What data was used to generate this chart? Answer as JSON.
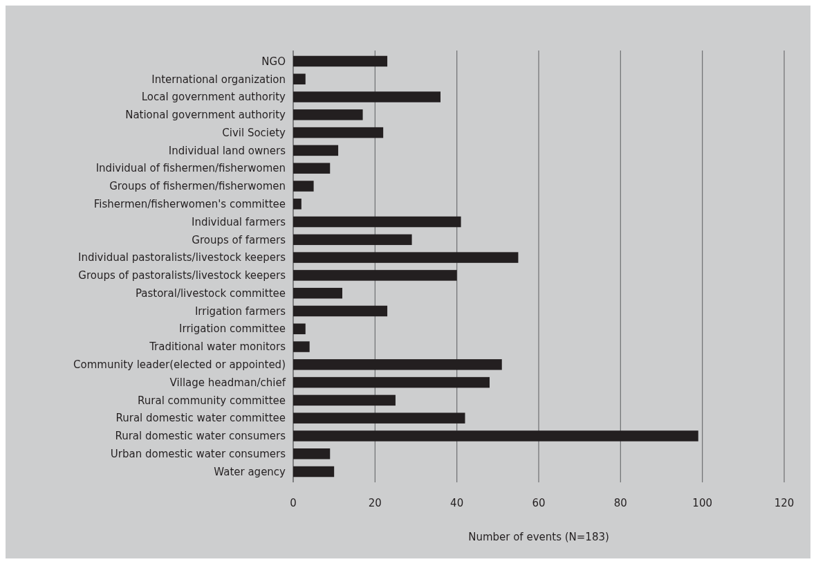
{
  "chart_data": {
    "type": "bar",
    "orientation": "horizontal",
    "xlabel": "Number of events (N=183)",
    "categories": [
      "NGO",
      "International organization",
      "Local government authority",
      "National government authority",
      "Civil Society",
      "Individual land owners",
      "Individual of fishermen/fisherwomen",
      "Groups of fishermen/fisherwomen",
      "Fishermen/fisherwomen's committee",
      "Individual farmers",
      "Groups of farmers",
      "Individual pastoralists/livestock keepers",
      "Groups of pastoralists/livestock keepers",
      "Pastoral/livestock committee",
      "Irrigation farmers",
      "Irrigation committee",
      "Traditional water monitors",
      "Community leader(elected or appointed)",
      "Village headman/chief",
      "Rural community committee",
      "Rural domestic water committee",
      "Rural domestic water consumers",
      "Urban domestic water consumers",
      "Water agency"
    ],
    "values": [
      23,
      3,
      36,
      17,
      22,
      11,
      9,
      5,
      2,
      41,
      29,
      55,
      40,
      12,
      23,
      3,
      4,
      51,
      48,
      25,
      42,
      99,
      9,
      10
    ],
    "color": "#231f20",
    "xlim": [
      0,
      120
    ],
    "xticks": [
      0,
      20,
      40,
      60,
      80,
      100,
      120
    ],
    "grid": "x"
  }
}
